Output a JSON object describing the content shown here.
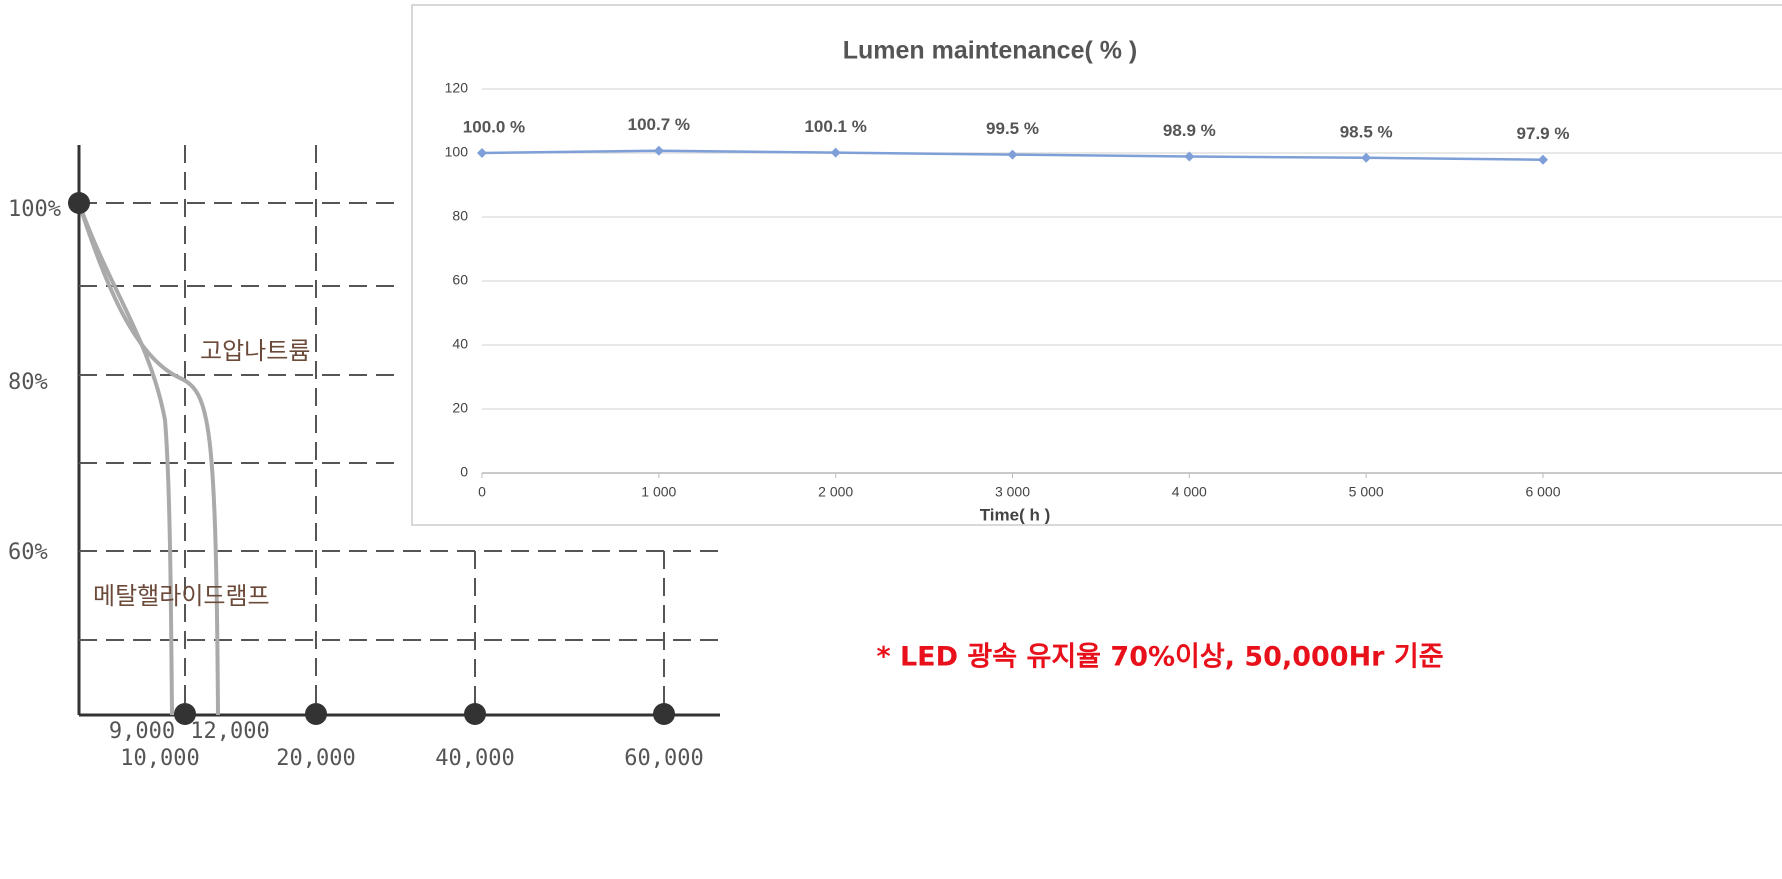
{
  "chart_data": {
    "type": "line",
    "title": "Lumen maintenance( % )",
    "x_label": "Time( h )",
    "x": [
      0,
      1000,
      2000,
      3000,
      4000,
      5000,
      6000
    ],
    "values": [
      100.0,
      100.7,
      100.1,
      99.5,
      98.9,
      98.5,
      97.9
    ],
    "value_labels": [
      "100.0 %",
      "100.7 %",
      "100.1 %",
      "99.5 %",
      "98.9 %",
      "98.5 %",
      "97.9 %"
    ],
    "color": "#7f9fd8",
    "xlim": [
      0,
      6000
    ],
    "xticks": [
      0,
      {
        "value": 1000,
        "label": "1 000"
      },
      {
        "value": 2000,
        "label": "2 000"
      },
      {
        "value": 3000,
        "label": "3 000"
      },
      {
        "value": 4000,
        "label": "4 000"
      },
      {
        "value": 5000,
        "label": "5 000"
      },
      {
        "value": 6000,
        "label": "6 000"
      }
    ],
    "ylim": [
      0,
      120
    ],
    "yticks": [
      0,
      20,
      40,
      60,
      80,
      100,
      120
    ],
    "grid": true
  },
  "diagram": {
    "y_labels": [
      "100%",
      "80%",
      "60%"
    ],
    "x_labels": [
      "9,000",
      "12,000",
      "10,000",
      "20,000",
      "40,000",
      "60,000"
    ],
    "curve_labels": [
      "고압나트륨",
      "메탈핼라이드램프"
    ]
  },
  "note": "* LED 광속 유지율 70%이상, 50,000Hr 기준"
}
